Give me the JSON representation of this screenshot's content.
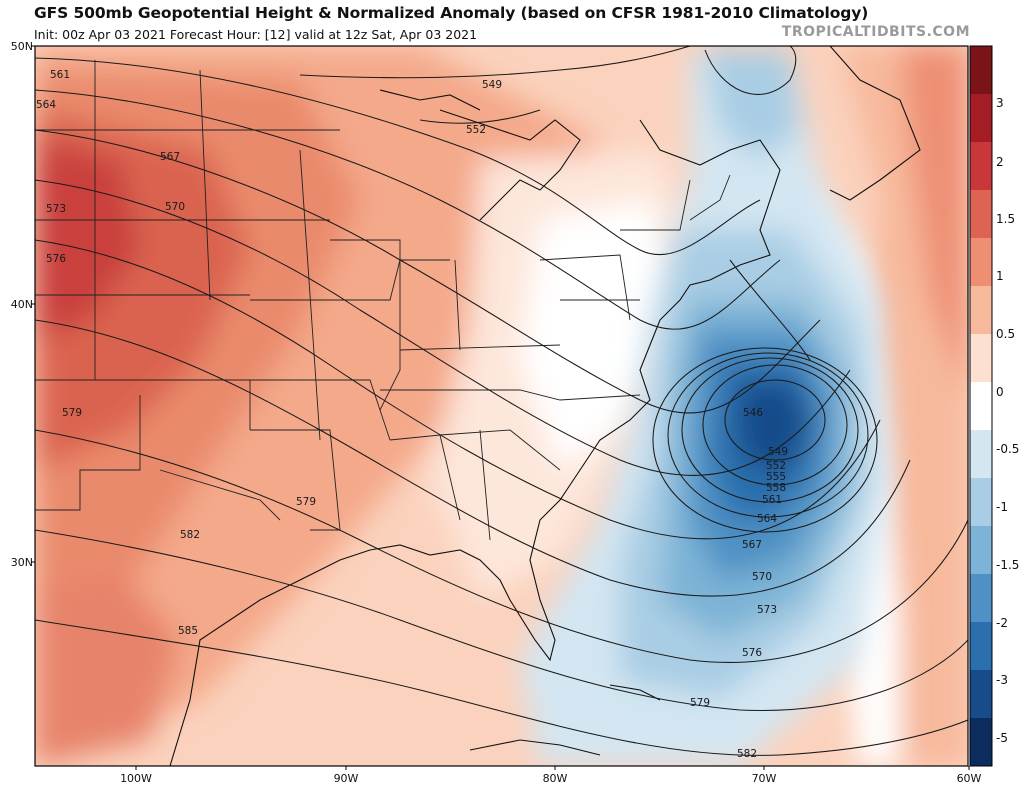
{
  "header": {
    "title": "GFS 500mb Geopotential Height & Normalized Anomaly (based on CFSR 1981-2010 Climatology)",
    "subtitle": "Init: 00z Apr 03 2021   Forecast Hour: [12]   valid at 12z Sat, Apr 03 2021",
    "brand": "TROPICALTIDBITS.COM"
  },
  "lat_labels": [
    "50N",
    "40N",
    "30N"
  ],
  "lon_labels": [
    "100W",
    "90W",
    "80W",
    "70W",
    "60W"
  ],
  "colorbar": {
    "labels": [
      "3",
      "2",
      "1.5",
      "1",
      "0.5",
      "0",
      "-0.5",
      "-1",
      "-1.5",
      "-2",
      "-3",
      "-5"
    ],
    "colors": [
      "#7a1418",
      "#a51d24",
      "#c8373a",
      "#dd6453",
      "#ee8f73",
      "#f7b99c",
      "#fde0cf",
      "#ffffff",
      "#d3e6f2",
      "#a9cde4",
      "#7db3d6",
      "#4f91c4",
      "#2c6fae",
      "#174b8a",
      "#0b2c5c"
    ]
  },
  "contour_labels": [
    "561",
    "564",
    "567",
    "570",
    "573",
    "576",
    "579",
    "582",
    "585",
    "549",
    "552",
    "546",
    "549",
    "552",
    "555",
    "558",
    "561",
    "564",
    "567",
    "570",
    "573",
    "576",
    "579",
    "582",
    "579"
  ]
}
